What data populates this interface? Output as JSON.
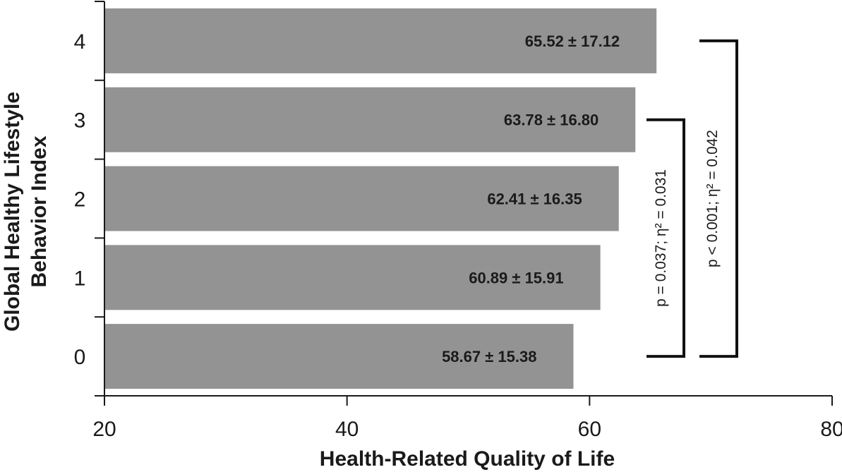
{
  "chart_data": {
    "type": "bar",
    "orientation": "horizontal",
    "categories": [
      "0",
      "1",
      "2",
      "3",
      "4"
    ],
    "values": [
      58.67,
      60.89,
      62.41,
      63.78,
      65.52
    ],
    "labels": [
      "58.67 ± 15.38",
      "60.89 ± 15.91",
      "62.41 ± 16.35",
      "63.78 ± 16.80",
      "65.52 ± 17.12"
    ],
    "xlabel": "Health-Related Quality of Life",
    "ylabel_lines": [
      "Global Healthy Lifestyle",
      "Behavior Index"
    ],
    "xlim": [
      20,
      80
    ],
    "xticks": [
      "20",
      "40",
      "60",
      "80"
    ],
    "grid": false,
    "legend": "none",
    "bar_color": "#939393",
    "annotations": [
      {
        "from_category": "0",
        "to_category": "3",
        "text": "p = 0.037; η² = 0.031"
      },
      {
        "from_category": "0",
        "to_category": "4",
        "text": "p < 0.001; η² = 0.042"
      }
    ]
  }
}
